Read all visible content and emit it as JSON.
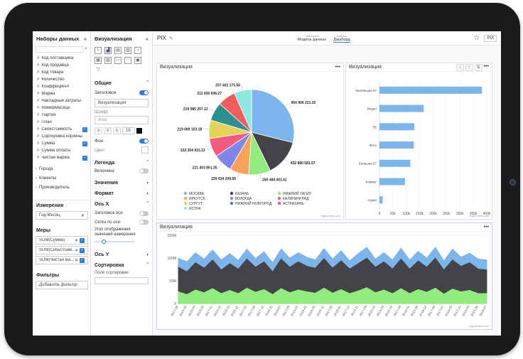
{
  "app": {
    "title": "PIX",
    "badge": "PIX"
  },
  "header_tabs": [
    {
      "small": "Навигация",
      "label": "Модель данных"
    },
    {
      "small": "Анализ",
      "label": "Дашборд"
    }
  ],
  "datasets": {
    "title": "Наборы данных",
    "fields": [
      {
        "label": "Код поставщика",
        "checked": false
      },
      {
        "label": "Код продавца",
        "checked": false
      },
      {
        "label": "Код товара",
        "checked": false
      },
      {
        "label": "Количество",
        "checked": false
      },
      {
        "label": "Коэффициент",
        "checked": false
      },
      {
        "label": "Маржа",
        "checked": false
      },
      {
        "label": "Накладные затраты",
        "checked": false
      },
      {
        "label": "НомерМесяца",
        "checked": false
      },
      {
        "label": "Партия",
        "checked": false
      },
      {
        "label": "План",
        "checked": false
      },
      {
        "label": "Себестоимость",
        "checked": true
      },
      {
        "label": "Сортировка корзины",
        "checked": false
      },
      {
        "label": "Сумма",
        "checked": true
      },
      {
        "label": "Сумма оплаты",
        "checked": false
      },
      {
        "label": "Чистая маржа",
        "checked": true
      }
    ],
    "groups": [
      "Города",
      "Клиенты",
      "Производитель"
    ]
  },
  "dimensions": {
    "title": "Измерения",
    "items": [
      "Год-Месяц"
    ]
  },
  "measures": {
    "title": "Меры",
    "items": [
      "SUM(Сумма)",
      "SUM(Себестоим...",
      "SUM(Чистая ма..."
    ]
  },
  "filters": {
    "title": "Фильтры",
    "add": "Добавить фильтр"
  },
  "viz_panel": {
    "title": "Визуализация",
    "general": "Общие",
    "header_label": "Заголовок",
    "header_value": "Визуализация",
    "font_label": "Шрифт",
    "font_value": "Arial",
    "font_size": "16",
    "background": "Фон",
    "color": "Цвет",
    "legend": "Легенда",
    "enabled": "Включена",
    "values": "Значения",
    "format": "Формат",
    "axis_x": "Ось X",
    "axis_title": "Заголовок оси",
    "axis_grid": "Сетка по оси",
    "angle_label": "Угол отображения значений измерения",
    "axis_y": "Ось Y",
    "sorting": "Сортировка",
    "sort_field": "Поле сортировки"
  },
  "pie_card": {
    "title": "Визуализация",
    "credit": "Highcharts.com",
    "chart_data": {
      "type": "pie",
      "slices": [
        {
          "name": "МОСКВА",
          "value": 904906221.02,
          "label": "904 906 221.02",
          "color": "#7cb5ec"
        },
        {
          "name": "КАЗАНЬ",
          "value": 432880581.57,
          "label": "432 880 581.57",
          "color": "#434348"
        },
        {
          "name": "НИЖНИЙ ТАГИЛ",
          "value": 260484401.61,
          "label": "260 484 401.61",
          "color": "#90ed7d"
        },
        {
          "name": "ИРКУТСК",
          "value": 229634209.96,
          "label": "229 634 209.96",
          "color": "#f7a35c"
        },
        {
          "name": "ВОЛОГДА",
          "value": 221403851.35,
          "label": "221 403 851.35",
          "color": "#8085e9"
        },
        {
          "name": "КАЛИНИНГРАД",
          "value": 222304915.13,
          "label": "222 304 915.13",
          "color": "#f15c80"
        },
        {
          "name": "СУРГУТ",
          "value": 219069103.18,
          "label": "219 069 103.18",
          "color": "#e4d354"
        },
        {
          "name": "НИЖНИЙ НОВГОРОД",
          "value": 219085257.12,
          "label": "219 085 257.12",
          "color": "#2b908f"
        },
        {
          "name": "АСТРАХАНЬ",
          "value": 211650606.27,
          "label": "211 650 606.27",
          "color": "#f45b5b"
        },
        {
          "name": "ИСТРА",
          "value": 207402175.58,
          "label": "207 402 175.58",
          "color": "#91e8e1"
        }
      ]
    }
  },
  "bar_card": {
    "title": "Визуализация",
    "credit": "Highcharts.com",
    "chart_data": {
      "type": "bar",
      "categories": [
        "Маленькая 57",
        "Видео",
        "TB",
        "Фото",
        "Большая 57",
        "Климат",
        "Аудио"
      ],
      "values": [
        382000,
        165000,
        130000,
        128000,
        115000,
        95000,
        12000
      ],
      "xlim": [
        0,
        400000
      ],
      "ticks": [
        "0",
        "50k",
        "100k",
        "150k",
        "200k",
        "250k",
        "300k",
        "350k",
        "400k"
      ],
      "color": "#7cb5ec"
    }
  },
  "area_card": {
    "title": "Визуализация",
    "credit": "Highcharts.com",
    "chart_data": {
      "type": "area",
      "ylim": [
        0,
        150
      ],
      "yticks": [
        "0",
        "50M",
        "100M",
        "150M"
      ],
      "x": [
        "2017-08",
        "2019-05",
        "2018-04",
        "2019-05",
        "2017-12",
        "2018-02",
        "2018-11",
        "2019-12",
        "2017-02",
        "2017-05",
        "2017-12",
        "2019-11",
        "2018-07",
        "2017-09",
        "2018-03",
        "2019-02",
        "2019-05",
        "2018-10",
        "2017-08",
        "2018-02",
        "2017-12",
        "2019-11",
        "2017-09",
        "2018-10",
        "2019-05",
        "2019-10",
        "2017-05",
        "2018-01",
        "2019-08",
        "2018-10",
        "2017-05",
        "2017-07",
        "2019-05",
        "2017-12",
        "2019-04",
        "2019-08",
        "2018-07"
      ],
      "series": [
        {
          "name": "SUM(Сумма)",
          "color": "#7cb5ec",
          "values": [
            100,
            92,
            112,
            98,
            118,
            96,
            110,
            95,
            120,
            99,
            114,
            90,
            120,
            100,
            112,
            102,
            96,
            121,
            98,
            116,
            94,
            110,
            124,
            98,
            112,
            96,
            122,
            96,
            115,
            100,
            124,
            94,
            120,
            102,
            111,
            98,
            96
          ]
        },
        {
          "name": "SUM(Себестоимость)",
          "color": "#434348",
          "values": [
            80,
            70,
            90,
            78,
            96,
            74,
            88,
            76,
            98,
            80,
            92,
            70,
            98,
            80,
            92,
            82,
            78,
            99,
            78,
            94,
            76,
            88,
            100,
            80,
            92,
            76,
            98,
            76,
            94,
            80,
            100,
            74,
            96,
            82,
            90,
            76,
            74
          ]
        },
        {
          "name": "SUM(Чистая маржа)",
          "color": "#90ed7d",
          "values": [
            26,
            20,
            30,
            24,
            33,
            22,
            29,
            22,
            34,
            25,
            31,
            20,
            33,
            24,
            30,
            26,
            23,
            34,
            23,
            31,
            22,
            28,
            35,
            24,
            30,
            22,
            33,
            22,
            31,
            25,
            34,
            21,
            32,
            26,
            29,
            22,
            22
          ]
        }
      ]
    }
  }
}
